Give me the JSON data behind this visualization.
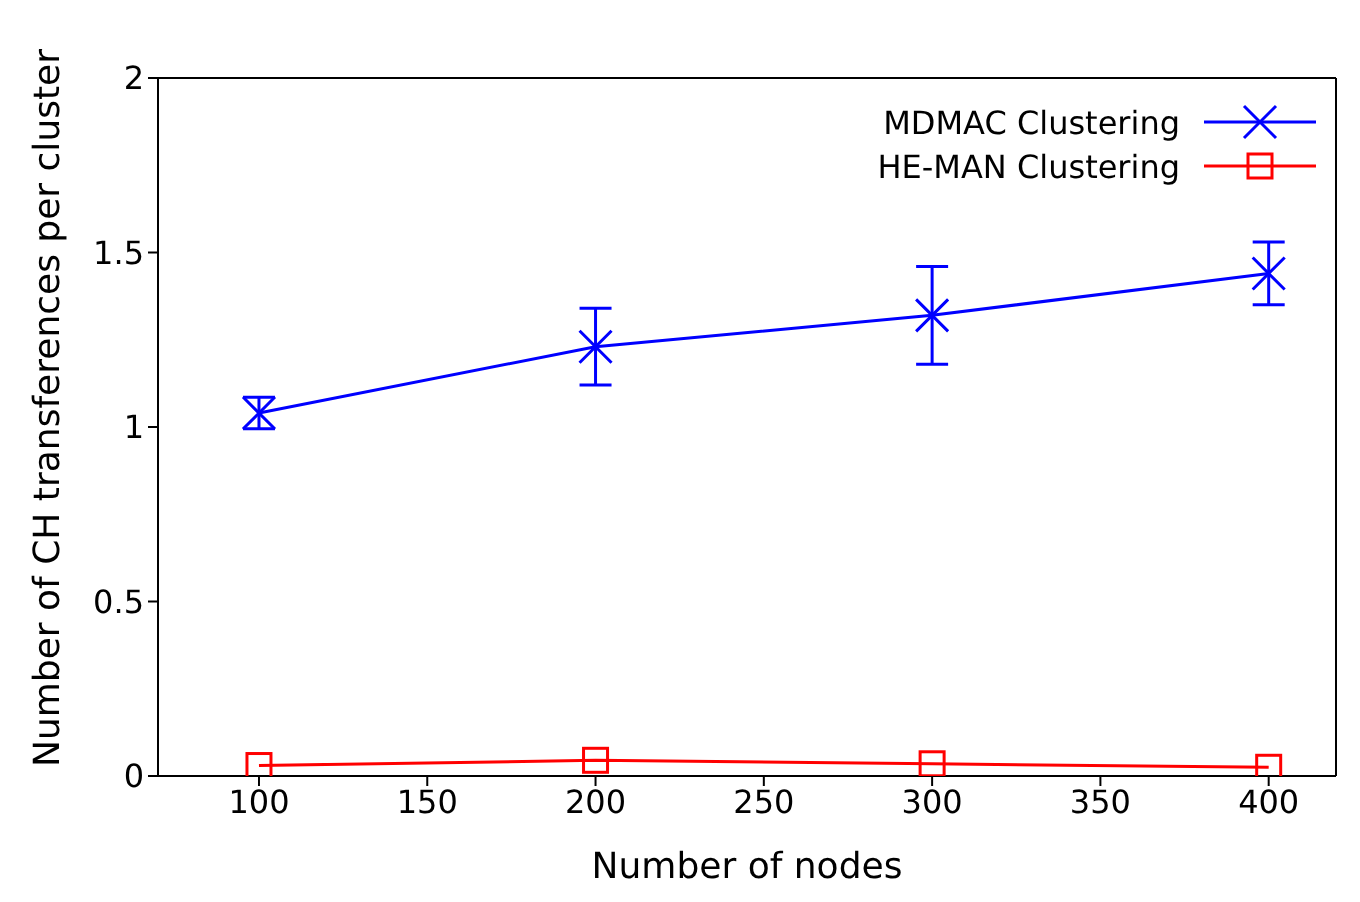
{
  "chart_data": {
    "type": "line",
    "xlabel": "Number of nodes",
    "ylabel": "Number of CH transferences per cluster",
    "x": [
      100,
      200,
      300,
      400
    ],
    "series": [
      {
        "name": "MDMAC Clustering",
        "color": "#0000ff",
        "marker": "cross",
        "values": [
          1.04,
          1.23,
          1.32,
          1.44
        ],
        "errors": [
          0.045,
          0.11,
          0.14,
          0.09
        ]
      },
      {
        "name": "HE-MAN Clustering",
        "color": "#ff0000",
        "marker": "square",
        "values": [
          0.03,
          0.045,
          0.035,
          0.025
        ]
      }
    ],
    "xlim": [
      70,
      420
    ],
    "xticks": [
      100,
      150,
      200,
      250,
      300,
      350,
      400
    ],
    "ylim": [
      0,
      2
    ],
    "yticks": [
      0,
      0.5,
      1,
      1.5,
      2
    ],
    "grid": false,
    "legend": "top right",
    "line_style": "solid"
  }
}
